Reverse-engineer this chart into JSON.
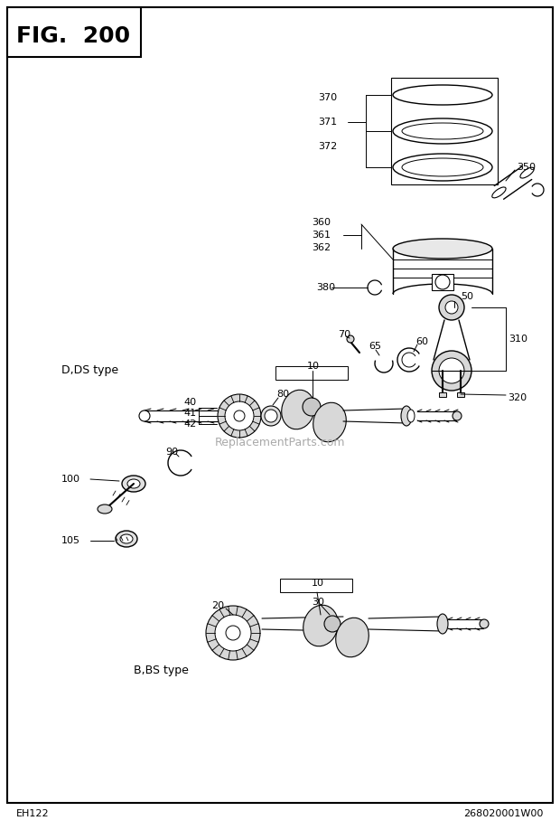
{
  "title": "FIG. 200",
  "bg_color": "#ffffff",
  "border_color": "#000000",
  "text_color": "#000000",
  "bottom_left": "EH122",
  "bottom_right": "268020001W00",
  "watermark": "ReplacementParts.com",
  "fig_size": [
    6.2,
    9.18
  ],
  "dpi": 100
}
